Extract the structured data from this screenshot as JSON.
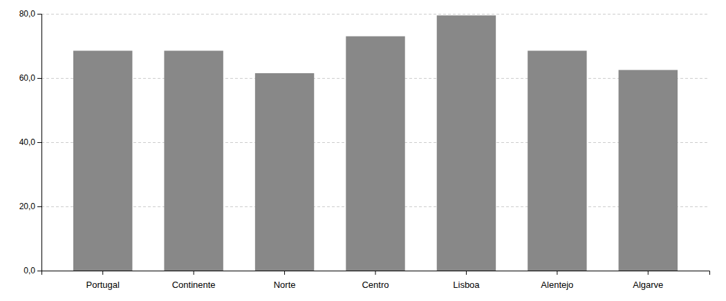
{
  "chart_data": {
    "type": "bar",
    "categories": [
      "Portugal",
      "Continente",
      "Norte",
      "Centro",
      "Lisboa",
      "Alentejo",
      "Algarve"
    ],
    "values": [
      68.5,
      68.5,
      61.5,
      73.0,
      79.5,
      68.5,
      62.5
    ],
    "color": "#888888",
    "ylim": [
      0,
      80
    ],
    "yticks": [
      {
        "value": 0,
        "label": "0,0"
      },
      {
        "value": 20,
        "label": "20,0"
      },
      {
        "value": 40,
        "label": "40,0"
      },
      {
        "value": 60,
        "label": "60,0"
      },
      {
        "value": 80,
        "label": "80,0"
      }
    ],
    "grid": true
  }
}
